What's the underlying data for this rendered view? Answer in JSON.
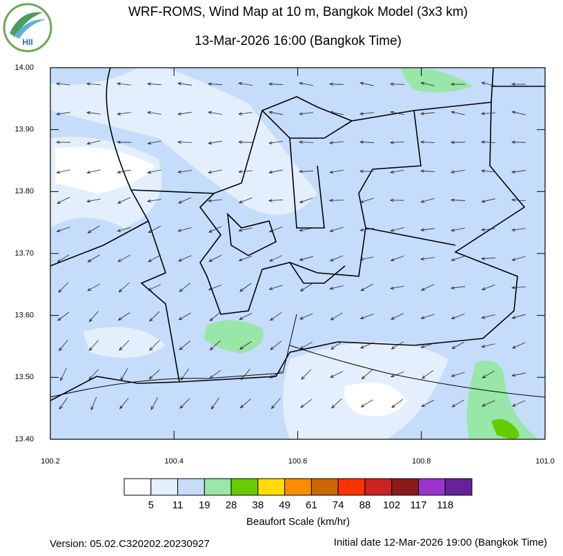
{
  "logo": {
    "text": "HII"
  },
  "header": {
    "title": "WRF-ROMS, Wind Map at 10 m, Bangkok Model (3x3 km)",
    "subtitle": "13-Mar-2026 16:00 (Bangkok Time)"
  },
  "map": {
    "xlim": [
      100.2,
      101.0
    ],
    "ylim": [
      13.4,
      14.0
    ],
    "xticks": [
      100.2,
      100.4,
      100.6,
      100.8,
      {
        "value": 101.0,
        "label": "101.0"
      }
    ],
    "yticks": [
      {
        "value": 14.0,
        "label": "14.00"
      },
      {
        "value": 13.9,
        "label": "13.90"
      },
      {
        "value": 13.8,
        "label": "13.80"
      },
      {
        "value": 13.7,
        "label": "13.70"
      },
      {
        "value": 13.6,
        "label": "13.60"
      },
      {
        "value": 13.5,
        "label": "13.50"
      },
      {
        "value": 13.4,
        "label": "13.40"
      }
    ]
  },
  "colorbar": {
    "title": "Beaufort Scale (km/hr)",
    "colors": [
      "#ffffff",
      "#e4effd",
      "#c6dcfb",
      "#98e6a8",
      "#66cc00",
      "#ffdd00",
      "#ff8c00",
      "#cc6600",
      "#ff3300",
      "#cc2222",
      "#8b1a1a",
      "#9933cc",
      "#662299"
    ],
    "labels": [
      5,
      11,
      19,
      28,
      38,
      49,
      61,
      74,
      88,
      102,
      117,
      118
    ]
  },
  "footer": {
    "version": "Version: 05.02.C320202.20230927",
    "initial": "Initial date 12-Mar-2026 19:00 (Bangkok Time)"
  }
}
